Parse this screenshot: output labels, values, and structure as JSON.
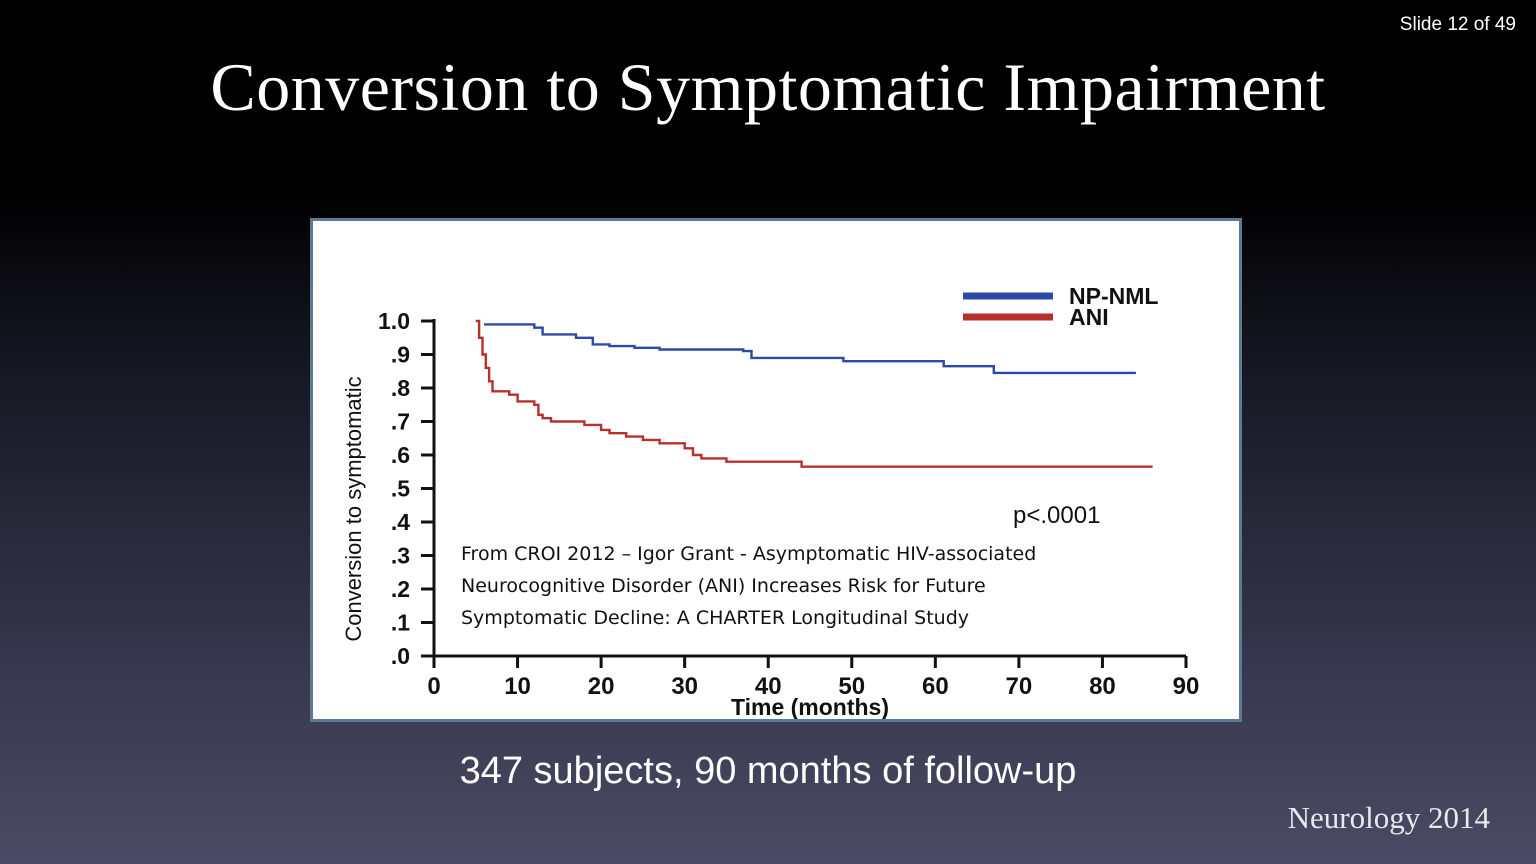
{
  "slide": {
    "counter": "Slide 12 of 49",
    "title": "Conversion to Symptomatic Impairment",
    "caption": "347 subjects, 90 months of follow-up",
    "source": "Neurology 2014"
  },
  "chart_data": {
    "type": "line",
    "step": true,
    "xlabel": "Time (months)",
    "ylabel": "Conversion to symptomatic",
    "xlim": [
      0,
      90
    ],
    "ylim": [
      0,
      1.0
    ],
    "x_ticks": [
      0,
      10,
      20,
      30,
      40,
      50,
      60,
      70,
      80,
      90
    ],
    "x_tick_labels": [
      "0",
      "10",
      "20",
      "30",
      "40",
      "50",
      "60",
      "70",
      "80",
      "90"
    ],
    "y_ticks": [
      0,
      0.1,
      0.2,
      0.3,
      0.4,
      0.5,
      0.6,
      0.7,
      0.8,
      0.9,
      1.0
    ],
    "y_tick_labels": [
      ".0",
      ".1",
      ".2",
      ".3",
      ".4",
      ".5",
      ".6",
      ".7",
      ".8",
      ".9",
      "1.0"
    ],
    "legend_position": "top-right",
    "grid": false,
    "pvalue": "p<.0001",
    "annotation": [
      "From CROI 2012 – Igor Grant - Asymptomatic HIV-associated",
      "Neurocognitive Disorder (ANI) Increases Risk for Future",
      "Symptomatic Decline: A CHARTER Longitudinal Study"
    ],
    "series": [
      {
        "name": "NP-NML",
        "color": "#2a4aa6",
        "points": [
          [
            6,
            0.99
          ],
          [
            12,
            0.98
          ],
          [
            13,
            0.96
          ],
          [
            17,
            0.95
          ],
          [
            19,
            0.93
          ],
          [
            21,
            0.925
          ],
          [
            24,
            0.92
          ],
          [
            27,
            0.915
          ],
          [
            37,
            0.91
          ],
          [
            38,
            0.89
          ],
          [
            49,
            0.88
          ],
          [
            61,
            0.865
          ],
          [
            67,
            0.845
          ],
          [
            84,
            0.845
          ]
        ]
      },
      {
        "name": "ANI",
        "color": "#b8302a",
        "points": [
          [
            5,
            1.0
          ],
          [
            5.4,
            0.95
          ],
          [
            5.8,
            0.9
          ],
          [
            6.2,
            0.86
          ],
          [
            6.6,
            0.82
          ],
          [
            7,
            0.79
          ],
          [
            9,
            0.78
          ],
          [
            10,
            0.76
          ],
          [
            12,
            0.75
          ],
          [
            12.5,
            0.72
          ],
          [
            13,
            0.71
          ],
          [
            14,
            0.7
          ],
          [
            18,
            0.69
          ],
          [
            20,
            0.675
          ],
          [
            21,
            0.665
          ],
          [
            23,
            0.655
          ],
          [
            25,
            0.645
          ],
          [
            27,
            0.635
          ],
          [
            30,
            0.62
          ],
          [
            31,
            0.6
          ],
          [
            32,
            0.59
          ],
          [
            35,
            0.58
          ],
          [
            44,
            0.565
          ],
          [
            86,
            0.565
          ]
        ]
      }
    ]
  }
}
